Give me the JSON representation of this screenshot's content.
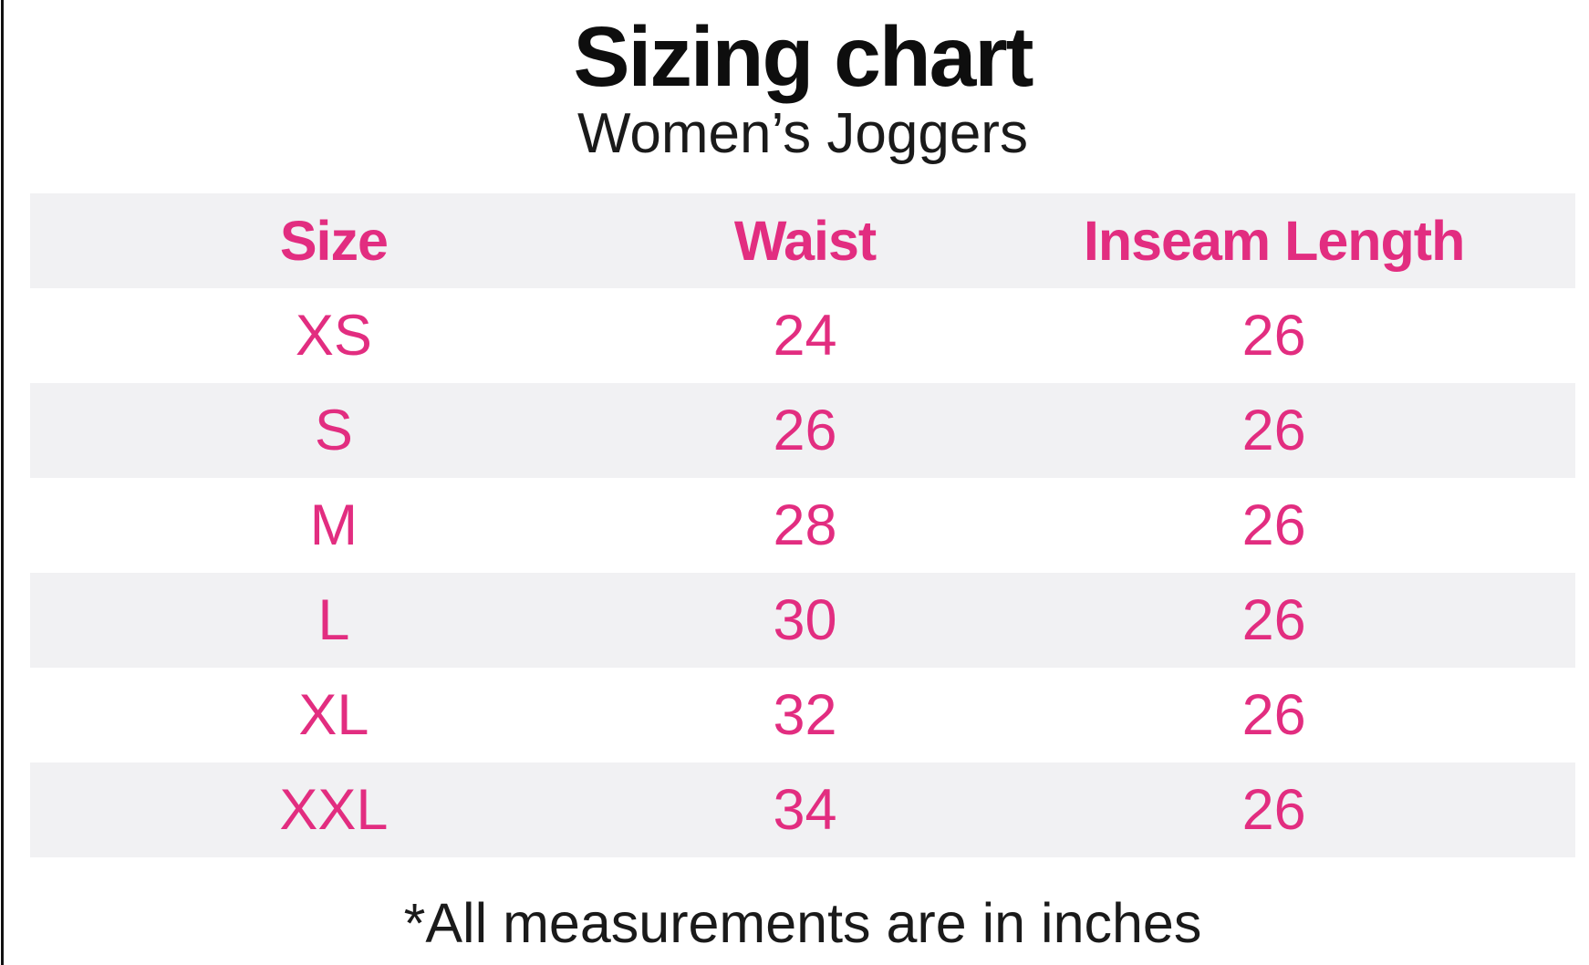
{
  "page": {
    "title": "Sizing chart",
    "subtitle": "Women’s Joggers",
    "footnote": "*All measurements are in inches"
  },
  "chart_data": {
    "type": "table",
    "title": "Sizing chart",
    "subtitle": "Women’s Joggers",
    "columns": [
      "Size",
      "Waist",
      "Inseam Length"
    ],
    "rows": [
      [
        "XS",
        "24",
        "26"
      ],
      [
        "S",
        "26",
        "26"
      ],
      [
        "M",
        "28",
        "26"
      ],
      [
        "L",
        "30",
        "26"
      ],
      [
        "XL",
        "32",
        "26"
      ],
      [
        "XXL",
        "34",
        "26"
      ]
    ],
    "units": "inches",
    "footnote": "*All measurements are in inches",
    "layout_hints": {
      "stripe_pattern": "header gray, then white/gray alternating",
      "all_text_centered": true
    }
  },
  "colors": {
    "accent_pink": "#e22d80",
    "row_alt_bg": "#f1f1f3",
    "text_black": "#111111",
    "background": "#ffffff"
  }
}
